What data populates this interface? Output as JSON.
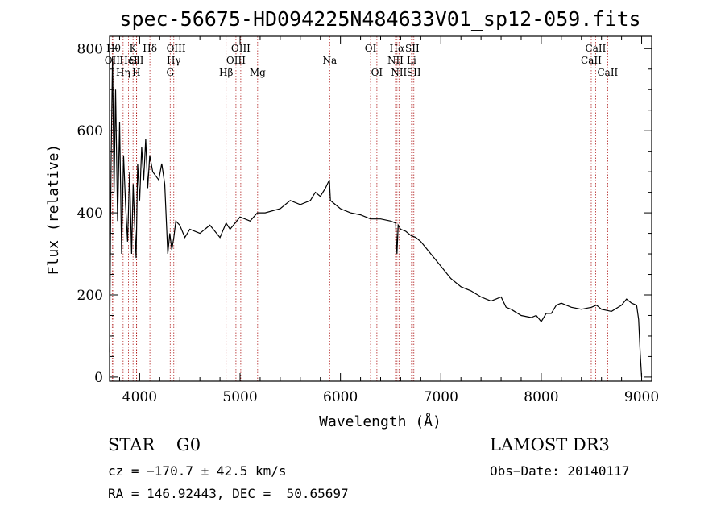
{
  "chart_data": {
    "type": "line",
    "title": "spec-56675-HD094225N484633V01_sp12-059.fits",
    "xlabel": "Wavelength (Å)",
    "ylabel": "Flux (relative)",
    "xlim": [
      3700,
      9100
    ],
    "ylim": [
      -10,
      830
    ],
    "xticks": [
      4000,
      5000,
      6000,
      7000,
      8000,
      9000
    ],
    "yticks": [
      0,
      200,
      400,
      600,
      800
    ],
    "series": [
      {
        "name": "flux",
        "x": [
          3700,
          3715,
          3730,
          3745,
          3760,
          3780,
          3800,
          3820,
          3840,
          3860,
          3880,
          3900,
          3920,
          3935,
          3950,
          3965,
          3980,
          4000,
          4020,
          4040,
          4060,
          4080,
          4100,
          4130,
          4160,
          4190,
          4220,
          4250,
          4280,
          4300,
          4320,
          4340,
          4360,
          4400,
          4450,
          4500,
          4600,
          4700,
          4800,
          4861,
          4900,
          5000,
          5100,
          5172,
          5250,
          5400,
          5500,
          5600,
          5700,
          5750,
          5800,
          5850,
          5890,
          5900,
          5950,
          6000,
          6100,
          6200,
          6300,
          6400,
          6500,
          6550,
          6563,
          6575,
          6600,
          6650,
          6700,
          6750,
          6800,
          6900,
          7000,
          7100,
          7200,
          7300,
          7400,
          7500,
          7600,
          7650,
          7700,
          7800,
          7900,
          7950,
          8000,
          8050,
          8100,
          8150,
          8200,
          8300,
          8400,
          8500,
          8550,
          8600,
          8700,
          8800,
          8850,
          8900,
          8950,
          8970,
          8985,
          9000
        ],
        "y": [
          60,
          520,
          780,
          450,
          700,
          380,
          620,
          300,
          540,
          420,
          330,
          500,
          300,
          470,
          370,
          290,
          520,
          430,
          560,
          480,
          580,
          460,
          540,
          500,
          490,
          480,
          520,
          470,
          300,
          350,
          310,
          340,
          380,
          370,
          340,
          360,
          350,
          370,
          340,
          375,
          360,
          390,
          380,
          400,
          400,
          410,
          430,
          420,
          430,
          450,
          440,
          460,
          480,
          430,
          420,
          410,
          400,
          395,
          385,
          385,
          380,
          375,
          300,
          370,
          360,
          355,
          345,
          340,
          330,
          300,
          270,
          240,
          220,
          210,
          195,
          185,
          195,
          170,
          165,
          150,
          145,
          150,
          135,
          155,
          155,
          175,
          180,
          170,
          165,
          170,
          175,
          165,
          160,
          175,
          190,
          180,
          175,
          140,
          60,
          0
        ]
      }
    ],
    "lines": [
      {
        "name": "OII",
        "wavelength": 3727,
        "row": 2
      },
      {
        "name": "Hθ",
        "wavelength": 3740,
        "row": 1
      },
      {
        "name": "Hη",
        "wavelength": 3835,
        "row": 3
      },
      {
        "name": "HeI",
        "wavelength": 3889,
        "row": 2
      },
      {
        "name": "K",
        "wavelength": 3934,
        "row": 1
      },
      {
        "name": "SII",
        "wavelength": 3970,
        "row": 2
      },
      {
        "name": "H",
        "wavelength": 3968,
        "row": 3
      },
      {
        "name": "Hδ",
        "wavelength": 4102,
        "row": 1
      },
      {
        "name": "OIII",
        "wavelength": 4363,
        "row": 1
      },
      {
        "name": "Hγ",
        "wavelength": 4340,
        "row": 2
      },
      {
        "name": "G",
        "wavelength": 4304,
        "row": 3
      },
      {
        "name": "Hβ",
        "wavelength": 4861,
        "row": 3
      },
      {
        "name": "OIII",
        "wavelength": 4959,
        "row": 2
      },
      {
        "name": "OIII",
        "wavelength": 5007,
        "row": 1
      },
      {
        "name": "Mg",
        "wavelength": 5175,
        "row": 3
      },
      {
        "name": "Na",
        "wavelength": 5893,
        "row": 2
      },
      {
        "name": "OI",
        "wavelength": 6300,
        "row": 1
      },
      {
        "name": "OI",
        "wavelength": 6363,
        "row": 3
      },
      {
        "name": "NII",
        "wavelength": 6548,
        "row": 2
      },
      {
        "name": "Hα",
        "wavelength": 6563,
        "row": 1
      },
      {
        "name": "NII",
        "wavelength": 6583,
        "row": 3
      },
      {
        "name": "Li",
        "wavelength": 6708,
        "row": 2
      },
      {
        "name": "SII",
        "wavelength": 6716,
        "row": 1
      },
      {
        "name": "SII",
        "wavelength": 6731,
        "row": 3
      },
      {
        "name": "CaII",
        "wavelength": 8498,
        "row": 2
      },
      {
        "name": "CaII",
        "wavelength": 8542,
        "row": 1
      },
      {
        "name": "CaII",
        "wavelength": 8662,
        "row": 3
      }
    ]
  },
  "footer": {
    "class_line": "STAR    G0",
    "survey": "LAMOST DR3",
    "velocity": "cz = −170.7 ± 42.5 km/s",
    "obs_date": "Obs−Date: 20140117",
    "coords": "RA = 146.92443, DEC =  50.65697"
  },
  "colors": {
    "axis": "#000000",
    "spectrum": "#000000",
    "line_marker": "#b22222"
  }
}
